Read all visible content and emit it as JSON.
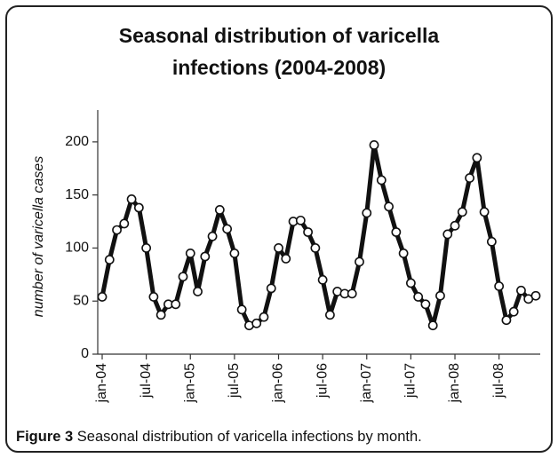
{
  "chart_data": {
    "type": "line",
    "title": "Seasonal distribution of varicella infections (2004-2008)",
    "y_label": "number of varicella cases",
    "categories": [
      "jan-04",
      null,
      null,
      null,
      null,
      null,
      "jul-04",
      null,
      null,
      null,
      null,
      null,
      "jan-05",
      null,
      null,
      null,
      null,
      null,
      "jul-05",
      null,
      null,
      null,
      null,
      null,
      "jan-06",
      null,
      null,
      null,
      null,
      null,
      "jul-06",
      null,
      null,
      null,
      null,
      null,
      "jan-07",
      null,
      null,
      null,
      null,
      null,
      "jul-07",
      null,
      null,
      null,
      null,
      null,
      "jan-08",
      null,
      null,
      null,
      null,
      null,
      "jul-08",
      null,
      null,
      null,
      null,
      null
    ],
    "values": [
      54,
      89,
      117,
      123,
      146,
      138,
      100,
      54,
      37,
      47,
      47,
      73,
      95,
      59,
      92,
      111,
      136,
      118,
      95,
      42,
      27,
      29,
      35,
      62,
      100,
      90,
      125,
      126,
      115,
      100,
      70,
      37,
      59,
      57,
      57,
      87,
      133,
      197,
      164,
      139,
      115,
      95,
      67,
      54,
      47,
      27,
      55,
      113,
      121,
      134,
      166,
      185,
      134,
      106,
      64,
      32,
      40,
      60,
      52,
      55
    ],
    "color": "#111111",
    "ylim": [
      0,
      230
    ],
    "yticks": [
      0,
      50,
      100,
      150,
      200
    ]
  },
  "caption": {
    "label": "Figure 3",
    "text": "Seasonal distribution of varicella infections by month."
  }
}
